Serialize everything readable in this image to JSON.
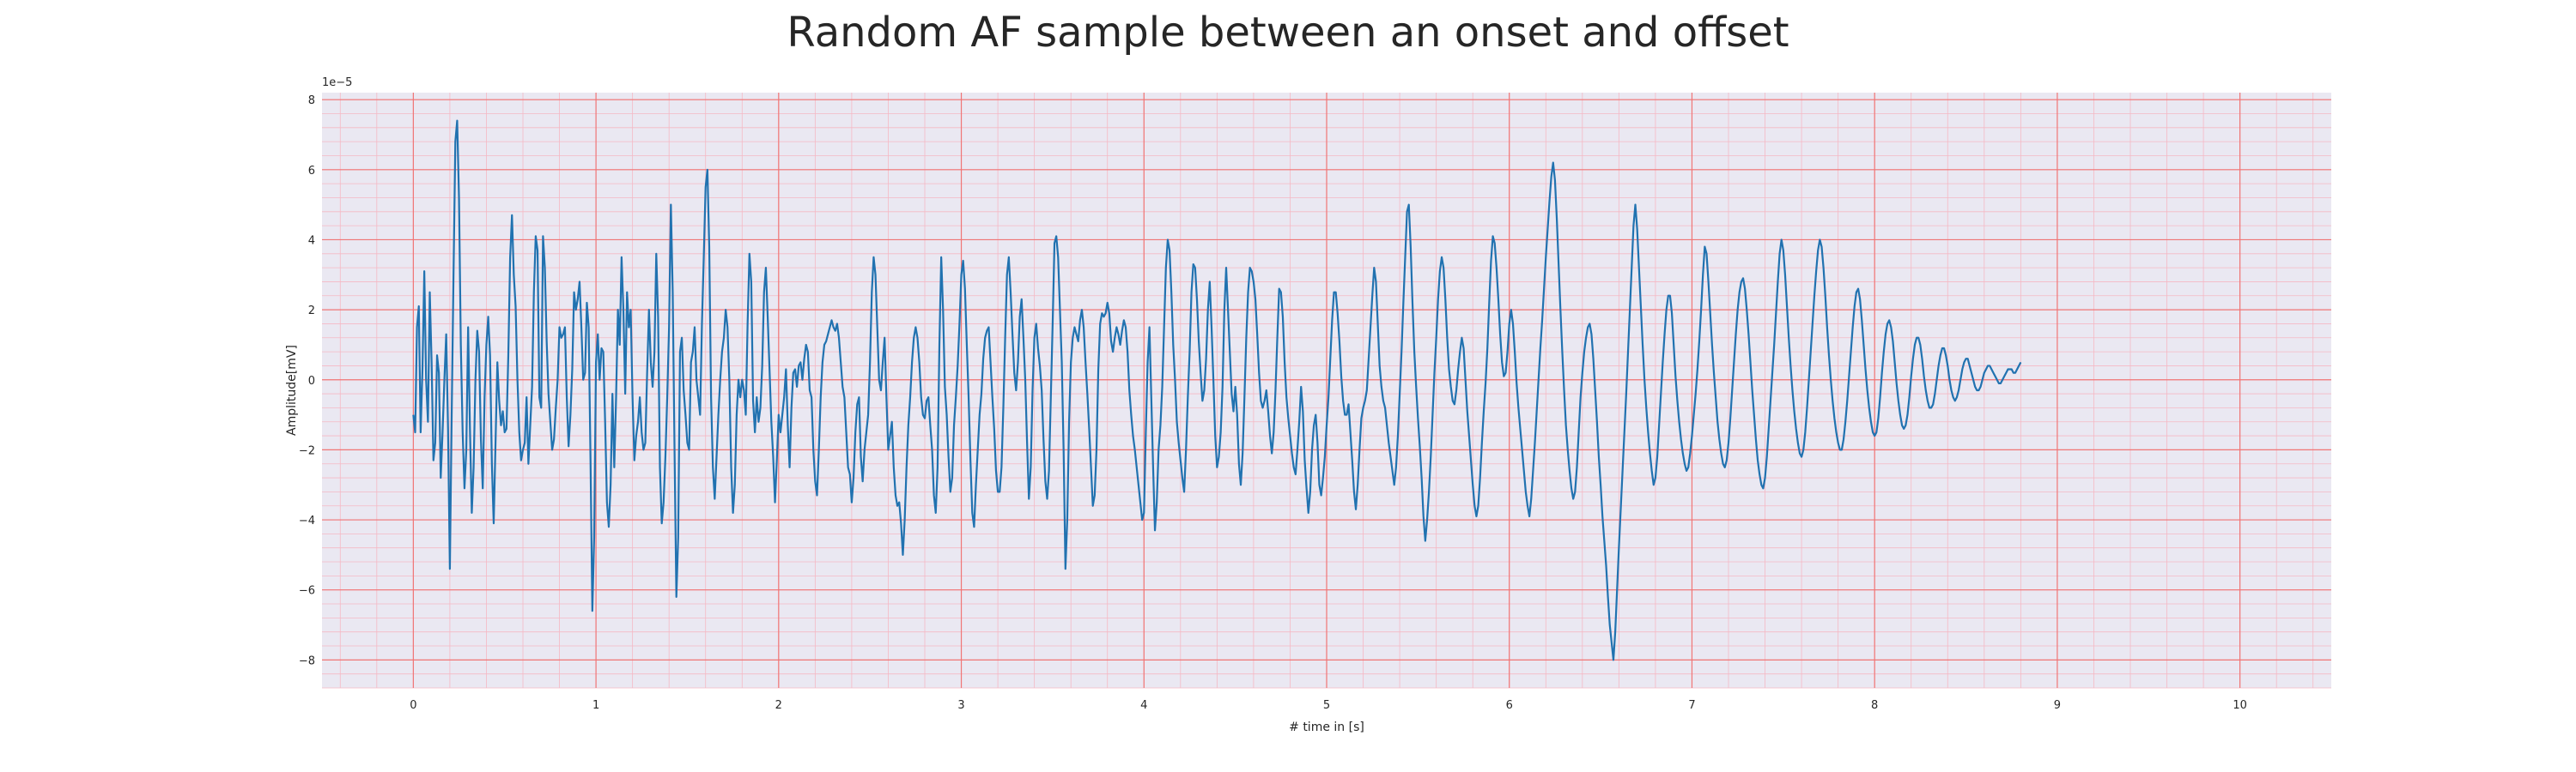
{
  "chart_data": {
    "type": "line",
    "title": "Random AF sample between an onset and offset",
    "xlabel": "# time in [s]",
    "ylabel": "Amplitude[mV]",
    "y_offset_label": "1e−5",
    "xlim": [
      -0.5,
      10.5
    ],
    "ylim": [
      -8.8,
      8.2
    ],
    "x_ticks": [
      0,
      1,
      2,
      3,
      4,
      5,
      6,
      7,
      8,
      9,
      10
    ],
    "y_ticks": [
      -8,
      -6,
      -4,
      -2,
      0,
      2,
      4,
      6,
      8
    ],
    "y_scale_factor": 1e-05,
    "grid": true,
    "grid_color_major": "#f07575",
    "grid_color_minor": "#f5b8c4",
    "background_color": "#eae8f2",
    "line_color": "#2172b0",
    "x_step": 0.01,
    "series": [
      {
        "y": [
          -1.0,
          -1.5,
          1.5,
          2.1,
          -1.5,
          0.3,
          3.1,
          0.0,
          -1.2,
          2.5,
          0.5,
          -2.3,
          -1.8,
          0.7,
          0.2,
          -2.8,
          -1.5,
          0.0,
          1.3,
          -1.4,
          -5.4,
          -1.0,
          3.0,
          6.8,
          7.4,
          5.2,
          1.0,
          -1.5,
          -3.1,
          -2.0,
          1.5,
          -1.4,
          -3.8,
          -2.5,
          0.0,
          1.4,
          0.8,
          -1.7,
          -3.1,
          -0.5,
          1.0,
          1.8,
          0.7,
          -2.4,
          -4.1,
          -1.8,
          0.5,
          -0.6,
          -1.3,
          -0.9,
          -1.5,
          -1.4,
          0.7,
          3.5,
          4.7,
          3.0,
          2.1,
          0.0,
          -1.5,
          -2.3,
          -2.0,
          -1.8,
          -0.5,
          -2.4,
          -1.3,
          -0.2,
          2.5,
          4.1,
          3.7,
          -0.5,
          -0.8,
          4.1,
          3.2,
          1.1,
          -0.4,
          -1.2,
          -2.0,
          -1.7,
          -0.8,
          0.0,
          1.5,
          1.2,
          1.3,
          1.5,
          -0.5,
          -1.9,
          -1.0,
          0.3,
          2.5,
          2.0,
          2.3,
          2.8,
          1.5,
          0.0,
          0.2,
          2.2,
          1.5,
          -2.3,
          -6.6,
          -4.5,
          0.5,
          1.3,
          0.0,
          0.9,
          0.8,
          -1.2,
          -3.5,
          -4.2,
          -3.0,
          -0.4,
          -2.5,
          -0.5,
          2.0,
          1.0,
          3.5,
          2.0,
          -0.4,
          2.5,
          1.5,
          2.0,
          -0.5,
          -2.3,
          -1.6,
          -1.2,
          -0.5,
          -1.5,
          -2.0,
          -1.8,
          0.2,
          2.0,
          0.5,
          -0.2,
          0.8,
          3.6,
          1.8,
          -2.5,
          -4.1,
          -3.5,
          -2.2,
          -0.5,
          1.5,
          5.0,
          2.5,
          -2.0,
          -6.2,
          -4.5,
          0.8,
          1.2,
          -0.3,
          -1.0,
          -1.8,
          -2.0,
          0.5,
          0.8,
          1.5,
          0.0,
          -0.5,
          -1.0,
          1.6,
          3.5,
          5.5,
          6.0,
          3.8,
          -0.5,
          -2.5,
          -3.4,
          -2.2,
          -1.0,
          0.0,
          0.8,
          1.2,
          2.0,
          1.5,
          0.0,
          -2.5,
          -3.8,
          -3.0,
          -1.0,
          0.0,
          -0.5,
          0.0,
          -0.3,
          -1.0,
          1.6,
          3.6,
          2.8,
          -0.6,
          -1.5,
          -0.5,
          -1.2,
          -0.8,
          0.4,
          2.5,
          3.2,
          1.8,
          0.3,
          -1.2,
          -2.2,
          -3.5,
          -2.3,
          -1.0,
          -1.5,
          -1.0,
          -0.5,
          0.3,
          -1.3,
          -2.5,
          -0.8,
          0.2,
          0.3,
          -0.2,
          0.4,
          0.5,
          0.0,
          0.6,
          1.0,
          0.8,
          -0.3,
          -0.5,
          -2.0,
          -2.9,
          -3.3,
          -2.0,
          -0.5,
          0.5,
          1.0,
          1.1,
          1.3,
          1.5,
          1.7,
          1.5,
          1.4,
          1.6,
          1.2,
          0.5,
          -0.2,
          -0.5,
          -1.5,
          -2.5,
          -2.7,
          -3.5,
          -2.8,
          -1.5,
          -0.7,
          -0.5,
          -2.2,
          -2.9,
          -2.0,
          -1.5,
          -1.0,
          0.5,
          2.5,
          3.5,
          3.0,
          1.5,
          0.0,
          -0.3,
          0.5,
          1.2,
          -0.5,
          -2.0,
          -1.6,
          -1.2,
          -2.5,
          -3.3,
          -3.6,
          -3.5,
          -4.1,
          -5.0,
          -4.0,
          -2.5,
          -1.3,
          -0.5,
          0.5,
          1.2,
          1.5,
          1.2,
          0.5,
          -0.5,
          -1.0,
          -1.1,
          -0.6,
          -0.5,
          -1.3,
          -2.0,
          -3.3,
          -3.8,
          -2.5,
          1.0,
          3.5,
          2.0,
          -0.2,
          -1.0,
          -2.2,
          -3.2,
          -2.8,
          -1.3,
          -0.5,
          0.4,
          1.6,
          3.0,
          3.4,
          2.6,
          1.0,
          -0.5,
          -2.3,
          -3.8,
          -4.2,
          -3.0,
          -2.0,
          -1.0,
          -0.4,
          0.6,
          1.2,
          1.4,
          1.5,
          0.5,
          -0.5,
          -1.4,
          -2.6,
          -3.2,
          -3.2,
          -2.5,
          -0.8,
          1.2,
          3.0,
          3.5,
          2.5,
          1.3,
          0.2,
          -0.3,
          0.5,
          1.8,
          2.3,
          1.2,
          0.0,
          -1.8,
          -3.4,
          -2.5,
          -0.3,
          1.2,
          1.6,
          0.9,
          0.4,
          -0.3,
          -1.7,
          -2.9,
          -3.4,
          -2.6,
          -0.5,
          1.6,
          3.9,
          4.1,
          3.5,
          2.0,
          0.5,
          -2.0,
          -5.4,
          -4.0,
          -1.2,
          0.5,
          1.2,
          1.5,
          1.3,
          1.1,
          1.7,
          2.0,
          1.5,
          0.5,
          -0.4,
          -1.4,
          -2.5,
          -3.6,
          -3.3,
          -2.0,
          0.3,
          1.6,
          1.9,
          1.8,
          1.9,
          2.2,
          1.9,
          1.1,
          0.8,
          1.2,
          1.5,
          1.3,
          1.0,
          1.4,
          1.7,
          1.5,
          0.8,
          -0.3,
          -1.0,
          -1.6,
          -2.0,
          -2.5,
          -3.0,
          -3.5,
          -4.0,
          -3.8,
          -1.5,
          0.5,
          1.5,
          -0.5,
          -2.5,
          -4.3,
          -3.5,
          -2.0,
          -1.3,
          -0.2,
          1.5,
          3.2,
          4.0,
          3.7,
          2.5,
          1.0,
          0.0,
          -1.2,
          -1.8,
          -2.3,
          -2.8,
          -3.2,
          -2.0,
          -0.5,
          0.8,
          2.5,
          3.3,
          3.2,
          2.3,
          1.1,
          0.2,
          -0.6,
          -0.3,
          0.6,
          2.0,
          2.8,
          1.5,
          0.0,
          -1.6,
          -2.5,
          -2.2,
          -1.5,
          -0.2,
          2.0,
          3.2,
          2.0,
          0.8,
          -0.4,
          -0.9,
          -0.2,
          -1.0,
          -2.4,
          -3.0,
          -2.1,
          -0.5,
          1.2,
          2.5,
          3.2,
          3.1,
          2.8,
          2.3,
          1.3,
          0.2,
          -0.6,
          -0.8,
          -0.6,
          -0.3,
          -0.9,
          -1.6,
          -2.1,
          -1.5,
          -0.3,
          1.2,
          2.6,
          2.5,
          1.8,
          0.5,
          -0.5,
          -1.1,
          -1.6,
          -2.1,
          -2.5,
          -2.7,
          -2.0,
          -1.2,
          -0.2,
          -0.9,
          -2.3,
          -3.1,
          -3.8,
          -3.2,
          -2.0,
          -1.3,
          -1.0,
          -1.8,
          -3.0,
          -3.3,
          -2.8,
          -2.2,
          -1.3,
          -0.5,
          0.6,
          1.7,
          2.5,
          2.5,
          1.9,
          1.1,
          0.1,
          -0.6,
          -1.0,
          -1.0,
          -0.7,
          -1.5,
          -2.3,
          -3.2,
          -3.7,
          -3.0,
          -2.0,
          -1.1,
          -0.8,
          -0.6,
          -0.3,
          0.6,
          1.5,
          2.4,
          3.2,
          2.8,
          1.6,
          0.4,
          -0.2,
          -0.6,
          -0.8,
          -1.3,
          -1.8,
          -2.2,
          -2.6,
          -3.0,
          -2.5,
          -1.6,
          -0.4,
          0.8,
          2.2,
          3.5,
          4.8,
          5.0,
          3.8,
          2.2,
          0.8,
          -0.2,
          -1.1,
          -1.9,
          -2.8,
          -3.9,
          -4.6,
          -4.0,
          -3.2,
          -2.2,
          -1.0,
          0.2,
          1.2,
          2.3,
          3.1,
          3.5,
          3.2,
          2.3,
          1.2,
          0.3,
          -0.2,
          -0.6,
          -0.7,
          -0.3,
          0.3,
          0.8,
          1.2,
          0.9,
          0.0,
          -0.9,
          -1.6,
          -2.3,
          -3.0,
          -3.6,
          -3.9,
          -3.6,
          -2.8,
          -1.8,
          -0.9,
          -0.1,
          0.9,
          2.2,
          3.4,
          4.1,
          3.9,
          3.2,
          2.3,
          1.3,
          0.5,
          0.1,
          0.2,
          0.8,
          1.6,
          2.0,
          1.6,
          0.8,
          -0.1,
          -0.8,
          -1.4,
          -2.0,
          -2.6,
          -3.2,
          -3.6,
          -3.9,
          -3.4,
          -2.6,
          -1.8,
          -0.9,
          0.0,
          0.9,
          1.7,
          2.6,
          3.5,
          4.3,
          5.1,
          5.8,
          6.2,
          5.7,
          4.6,
          3.3,
          2.0,
          0.8,
          -0.3,
          -1.3,
          -2.0,
          -2.6,
          -3.1,
          -3.4,
          -3.2,
          -2.5,
          -1.5,
          -0.5,
          0.2,
          0.8,
          1.2,
          1.5,
          1.6,
          1.3,
          0.6,
          -0.3,
          -1.2,
          -2.2,
          -3.0,
          -3.9,
          -4.6,
          -5.3,
          -6.2,
          -7.0,
          -7.5,
          -8.0,
          -7.2,
          -6.0,
          -4.8,
          -3.7,
          -2.6,
          -1.5,
          -0.4,
          0.8,
          2.0,
          3.2,
          4.4,
          5.0,
          4.3,
          3.2,
          2.1,
          1.0,
          0.0,
          -0.8,
          -1.5,
          -2.1,
          -2.6,
          -3.0,
          -2.8,
          -2.2,
          -1.3,
          -0.4,
          0.5,
          1.3,
          2.0,
          2.4,
          2.4,
          1.9,
          1.0,
          0.1,
          -0.6,
          -1.2,
          -1.7,
          -2.1,
          -2.4,
          -2.6,
          -2.5,
          -2.1,
          -1.6,
          -1.0,
          -0.4,
          0.3,
          1.1,
          2.0,
          3.0,
          3.8,
          3.6,
          2.8,
          1.9,
          1.0,
          0.2,
          -0.5,
          -1.2,
          -1.7,
          -2.1,
          -2.4,
          -2.5,
          -2.3,
          -1.8,
          -1.1,
          -0.3,
          0.5,
          1.3,
          2.0,
          2.5,
          2.8,
          2.9,
          2.6,
          2.0,
          1.3,
          0.5,
          -0.3,
          -1.0,
          -1.7,
          -2.3,
          -2.7,
          -3.0,
          -3.1,
          -2.8,
          -2.2,
          -1.4,
          -0.6,
          0.2,
          1.0,
          1.9,
          2.8,
          3.6,
          4.0,
          3.7,
          3.0,
          2.1,
          1.2,
          0.4,
          -0.3,
          -0.9,
          -1.4,
          -1.8,
          -2.1,
          -2.2,
          -2.0,
          -1.5,
          -0.8,
          0.0,
          0.8,
          1.6,
          2.4,
          3.1,
          3.7,
          4.0,
          3.8,
          3.2,
          2.4,
          1.5,
          0.7,
          0.0,
          -0.6,
          -1.1,
          -1.5,
          -1.8,
          -2.0,
          -2.0,
          -1.7,
          -1.2,
          -0.6,
          0.1,
          0.8,
          1.5,
          2.1,
          2.5,
          2.6,
          2.3,
          1.7,
          1.0,
          0.3,
          -0.3,
          -0.8,
          -1.2,
          -1.5,
          -1.6,
          -1.5,
          -1.1,
          -0.5,
          0.2,
          0.8,
          1.3,
          1.6,
          1.7,
          1.5,
          1.1,
          0.5,
          -0.1,
          -0.6,
          -1.0,
          -1.3,
          -1.4,
          -1.3,
          -1.0,
          -0.5,
          0.1,
          0.6,
          1.0,
          1.2,
          1.2,
          1.0,
          0.6,
          0.1,
          -0.3,
          -0.6,
          -0.8,
          -0.8,
          -0.7,
          -0.4,
          0.0,
          0.4,
          0.7,
          0.9,
          0.9,
          0.7,
          0.4,
          0.0,
          -0.3,
          -0.5,
          -0.6,
          -0.5,
          -0.3,
          0.0,
          0.3,
          0.5,
          0.6,
          0.6,
          0.4,
          0.2,
          0.0,
          -0.2,
          -0.3,
          -0.3,
          -0.2,
          0.0,
          0.2,
          0.3,
          0.4,
          0.4,
          0.3,
          0.2,
          0.1,
          0.0,
          -0.1,
          -0.1,
          0.0,
          0.1,
          0.2,
          0.3,
          0.3,
          0.3,
          0.2,
          0.2,
          0.3,
          0.4,
          0.5
        ]
      }
    ]
  }
}
